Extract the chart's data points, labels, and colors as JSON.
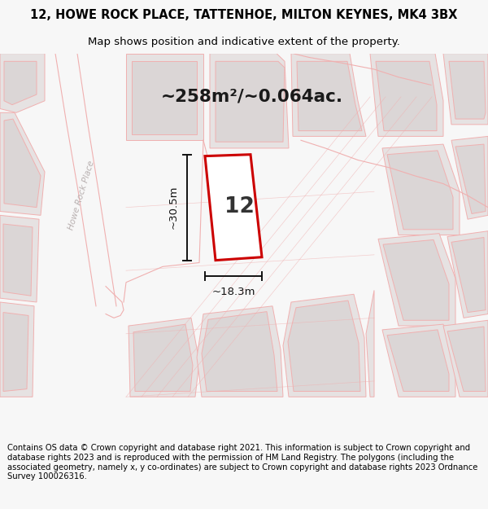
{
  "title_line1": "12, HOWE ROCK PLACE, TATTENHOE, MILTON KEYNES, MK4 3BX",
  "title_line2": "Map shows position and indicative extent of the property.",
  "area_text": "~258m²/~0.064ac.",
  "width_label": "~18.3m",
  "height_label": "~30.5m",
  "house_number": "12",
  "footer_text": "Contains OS data © Crown copyright and database right 2021. This information is subject to Crown copyright and database rights 2023 and is reproduced with the permission of HM Land Registry. The polygons (including the associated geometry, namely x, y co-ordinates) are subject to Crown copyright and database rights 2023 Ordnance Survey 100026316.",
  "bg_color": "#f7f7f7",
  "map_bg": "#f2f0f0",
  "plot_outline_color": "#cc0000",
  "plot_fill_color": "#ffffff",
  "block_color": "#e6e2e2",
  "block_outline": "#f0b0b0",
  "road_strip_color": "#f5f0f0",
  "title_fontsize": 10.5,
  "subtitle_fontsize": 9.5,
  "footer_fontsize": 7.2,
  "street_label_color": "#b8b0b0"
}
